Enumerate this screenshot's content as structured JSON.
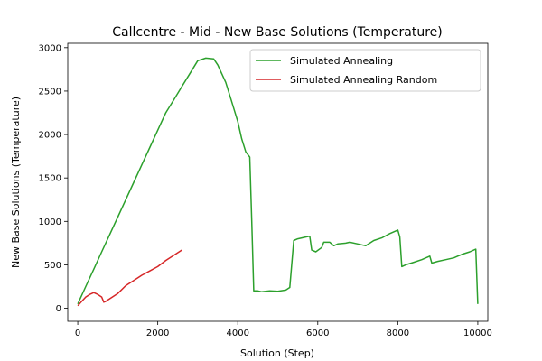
{
  "chart_data": {
    "type": "line",
    "title": "Callcentre - Mid - New Base Solutions (Temperature)",
    "xlabel": "Solution (Step)",
    "ylabel": "New Base Solutions (Temperature)",
    "xlim": [
      -250,
      10250
    ],
    "ylim": [
      -150,
      3050
    ],
    "xticks": [
      0,
      2000,
      4000,
      6000,
      8000,
      10000
    ],
    "yticks": [
      0,
      500,
      1000,
      1500,
      2000,
      2500,
      3000
    ],
    "grid": false,
    "legend_position": "top-right",
    "series": [
      {
        "name": "Simulated Annealing",
        "color": "#2ca02c",
        "x": [
          0,
          200,
          400,
          600,
          800,
          1000,
          1200,
          1400,
          1600,
          1800,
          2000,
          2200,
          2400,
          2600,
          2800,
          3000,
          3200,
          3400,
          3500,
          3600,
          3700,
          3800,
          3900,
          4000,
          4100,
          4200,
          4300,
          4350,
          4400,
          4500,
          4600,
          4800,
          5000,
          5200,
          5300,
          5400,
          5500,
          5700,
          5800,
          5850,
          5950,
          6100,
          6150,
          6300,
          6400,
          6500,
          6700,
          6800,
          7000,
          7200,
          7400,
          7600,
          7800,
          8000,
          8050,
          8100,
          8200,
          8400,
          8600,
          8800,
          8850,
          9000,
          9200,
          9400,
          9600,
          9800,
          9950,
          10000
        ],
        "y": [
          50,
          250,
          450,
          650,
          850,
          1050,
          1250,
          1450,
          1650,
          1850,
          2050,
          2250,
          2400,
          2550,
          2700,
          2850,
          2880,
          2870,
          2800,
          2700,
          2600,
          2450,
          2300,
          2150,
          1950,
          1800,
          1740,
          1000,
          200,
          200,
          190,
          200,
          195,
          210,
          240,
          780,
          800,
          820,
          830,
          670,
          650,
          700,
          760,
          760,
          720,
          740,
          750,
          760,
          740,
          720,
          780,
          810,
          860,
          900,
          820,
          480,
          500,
          530,
          560,
          600,
          520,
          540,
          560,
          580,
          620,
          650,
          680,
          50
        ]
      },
      {
        "name": "Simulated Annealing Random",
        "color": "#d62728",
        "x": [
          0,
          100,
          200,
          300,
          400,
          500,
          600,
          650,
          700,
          800,
          900,
          1000,
          1200,
          1400,
          1600,
          1800,
          2000,
          2200,
          2400,
          2600
        ],
        "y": [
          30,
          80,
          130,
          160,
          180,
          160,
          130,
          70,
          80,
          110,
          140,
          170,
          260,
          320,
          380,
          430,
          480,
          550,
          610,
          670
        ]
      }
    ]
  }
}
